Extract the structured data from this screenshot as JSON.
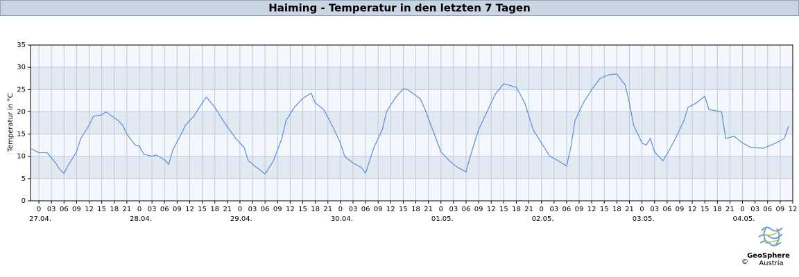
{
  "chart_data": {
    "type": "line",
    "title": "Haiming - Temperatur in den letzten 7 Tagen",
    "ylabel": "Temperatur in °C",
    "color": "#5b8bd9",
    "grid": true,
    "x": [
      -2,
      0,
      2,
      4,
      5,
      6,
      7,
      8,
      9,
      10,
      11,
      12,
      13,
      15,
      16,
      17,
      19,
      20,
      21,
      23,
      24,
      25,
      27,
      28,
      30,
      31,
      32,
      34,
      35,
      37,
      39,
      40,
      42,
      44,
      47,
      49,
      50,
      52,
      54,
      56,
      58,
      59,
      61,
      63,
      65,
      66,
      68,
      70,
      72,
      73,
      75,
      77,
      78,
      80,
      82,
      83,
      85,
      87,
      88,
      91,
      92,
      94,
      96,
      98,
      100,
      102,
      103,
      105,
      107,
      109,
      111,
      114,
      116,
      118,
      120,
      122,
      124,
      126,
      127,
      128,
      130,
      132,
      134,
      136,
      138,
      140,
      141,
      142,
      144,
      145,
      146,
      147,
      149,
      150,
      152,
      154,
      155,
      157,
      159,
      160,
      163,
      164,
      166,
      168,
      170,
      173,
      176,
      178,
      179
    ],
    "values": [
      11.8,
      10.8,
      10.8,
      8.5,
      7,
      6.2,
      8,
      9.5,
      11,
      14,
      15.5,
      17,
      19,
      19.3,
      20,
      19.3,
      18,
      17,
      15,
      12.5,
      12.3,
      10.5,
      10,
      10.3,
      9.2,
      8.2,
      11.5,
      15,
      17,
      19,
      22,
      23.3,
      21,
      18,
      14,
      12,
      9,
      7.5,
      6,
      9,
      14,
      18,
      21,
      23,
      24.2,
      22,
      20.5,
      17,
      13,
      10,
      8.5,
      7.5,
      6.2,
      12,
      16,
      20,
      23,
      25.2,
      25,
      23,
      21,
      16,
      11,
      9,
      7.5,
      6.5,
      10,
      16,
      20,
      24,
      26.3,
      25.5,
      22,
      16,
      13,
      10,
      9,
      7.8,
      12,
      18,
      22,
      25,
      27.5,
      28.3,
      28.5,
      26,
      22,
      17,
      13,
      12.5,
      14,
      11,
      9,
      10.5,
      14,
      18,
      21,
      22,
      23.5,
      20.5,
      20,
      14,
      14.5,
      13,
      12,
      11.8,
      13,
      14,
      16.8
    ],
    "xlim": [
      -2,
      180
    ],
    "xticks": [
      0,
      {
        "value": 3,
        "label": "03"
      },
      {
        "value": 6,
        "label": "06"
      },
      {
        "value": 9,
        "label": "09"
      },
      12,
      15,
      18,
      21,
      {
        "value": 24,
        "label": "0"
      },
      {
        "value": 27,
        "label": "03"
      },
      {
        "value": 30,
        "label": "06"
      },
      {
        "value": 33,
        "label": "09"
      },
      {
        "value": 36,
        "label": "12"
      },
      {
        "value": 39,
        "label": "15"
      },
      {
        "value": 42,
        "label": "18"
      },
      {
        "value": 45,
        "label": "21"
      },
      {
        "value": 48,
        "label": "0"
      },
      {
        "value": 51,
        "label": "03"
      },
      {
        "value": 54,
        "label": "06"
      },
      {
        "value": 57,
        "label": "09"
      },
      {
        "value": 60,
        "label": "12"
      },
      {
        "value": 63,
        "label": "15"
      },
      {
        "value": 66,
        "label": "18"
      },
      {
        "value": 69,
        "label": "21"
      },
      {
        "value": 72,
        "label": "0"
      },
      {
        "value": 75,
        "label": "03"
      },
      {
        "value": 78,
        "label": "06"
      },
      {
        "value": 81,
        "label": "09"
      },
      {
        "value": 84,
        "label": "12"
      },
      {
        "value": 87,
        "label": "15"
      },
      {
        "value": 90,
        "label": "18"
      },
      {
        "value": 93,
        "label": "21"
      },
      {
        "value": 96,
        "label": "0"
      },
      {
        "value": 99,
        "label": "03"
      },
      {
        "value": 102,
        "label": "06"
      },
      {
        "value": 105,
        "label": "09"
      },
      {
        "value": 108,
        "label": "12"
      },
      {
        "value": 111,
        "label": "15"
      },
      {
        "value": 114,
        "label": "18"
      },
      {
        "value": 117,
        "label": "21"
      },
      {
        "value": 120,
        "label": "0"
      },
      {
        "value": 123,
        "label": "03"
      },
      {
        "value": 126,
        "label": "06"
      },
      {
        "value": 129,
        "label": "09"
      },
      {
        "value": 132,
        "label": "12"
      },
      {
        "value": 135,
        "label": "15"
      },
      {
        "value": 138,
        "label": "18"
      },
      {
        "value": 141,
        "label": "21"
      },
      {
        "value": 144,
        "label": "0"
      },
      {
        "value": 147,
        "label": "03"
      },
      {
        "value": 150,
        "label": "06"
      },
      {
        "value": 153,
        "label": "09"
      },
      {
        "value": 156,
        "label": "12"
      },
      {
        "value": 159,
        "label": "15"
      },
      {
        "value": 162,
        "label": "18"
      },
      {
        "value": 165,
        "label": "21"
      },
      {
        "value": 168,
        "label": "0"
      },
      {
        "value": 171,
        "label": "03"
      },
      {
        "value": 174,
        "label": "06"
      },
      {
        "value": 177,
        "label": "09"
      },
      {
        "value": 180,
        "label": "12"
      }
    ],
    "xticks_days": [
      {
        "value": 0,
        "label": "27.04."
      },
      {
        "value": 24,
        "label": "28.04."
      },
      {
        "value": 48,
        "label": "29.04."
      },
      {
        "value": 72,
        "label": "30.04."
      },
      {
        "value": 96,
        "label": "01.05."
      },
      {
        "value": 120,
        "label": "02.05."
      },
      {
        "value": 144,
        "label": "03.05."
      },
      {
        "value": 168,
        "label": "04.05."
      }
    ],
    "ylim": [
      0,
      35
    ],
    "yticks": [
      0,
      5,
      10,
      15,
      20,
      25,
      30,
      35
    ]
  },
  "logo": {
    "name": "GeoSphere",
    "sub": "Austria",
    "copyright": "©"
  }
}
